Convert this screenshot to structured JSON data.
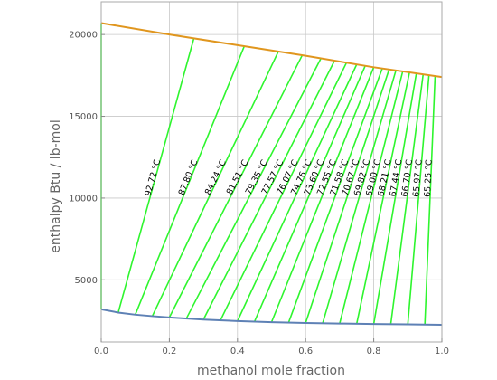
{
  "chart_data": {
    "type": "line",
    "title": "",
    "xlabel": "methanol  mole fraction",
    "ylabel": "enthalpy   Btu / lb-mol",
    "xlim": [
      0,
      1
    ],
    "ylim": [
      1200,
      22000
    ],
    "x_ticks": [
      "0.0",
      "0.2",
      "0.4",
      "0.6",
      "0.8",
      "1.0"
    ],
    "x_tick_values": [
      0,
      0.2,
      0.4,
      0.6,
      0.8,
      1.0
    ],
    "y_ticks": [
      "5000",
      "10000",
      "15000",
      "20000"
    ],
    "y_tick_values": [
      5000,
      10000,
      15000,
      20000
    ],
    "grid": true,
    "colors": {
      "vapor": "#e0961e",
      "liquid": "#5e81b5",
      "tie": "#2ef52e",
      "grid": "#c8c8c8",
      "frame": "#aaaaaa"
    },
    "series": [
      {
        "role": "vapor",
        "x": [
          0.0,
          0.2,
          0.4,
          0.6,
          0.8,
          1.0
        ],
        "y": [
          20700,
          20000,
          19350,
          18700,
          18000,
          17400
        ]
      },
      {
        "role": "liquid",
        "x": [
          0.0,
          0.05,
          0.1,
          0.15,
          0.2,
          0.3,
          0.4,
          0.5,
          0.6,
          0.7,
          0.8,
          0.9,
          1.0
        ],
        "y": [
          3200,
          3000,
          2870,
          2780,
          2700,
          2570,
          2480,
          2410,
          2360,
          2330,
          2300,
          2280,
          2250
        ]
      }
    ],
    "tie_lines": [
      {
        "x_liquid": 0.0,
        "x_vapor": 0.0,
        "label": ""
      },
      {
        "x_liquid": 0.05,
        "x_vapor": 0.272,
        "label": "92.72 °C"
      },
      {
        "x_liquid": 0.1,
        "x_vapor": 0.42,
        "label": "87.80 °C"
      },
      {
        "x_liquid": 0.15,
        "x_vapor": 0.52,
        "label": "84.24 °C"
      },
      {
        "x_liquid": 0.2,
        "x_vapor": 0.59,
        "label": "81.51 °C"
      },
      {
        "x_liquid": 0.25,
        "x_vapor": 0.645,
        "label": "79.35 °C"
      },
      {
        "x_liquid": 0.3,
        "x_vapor": 0.685,
        "label": "77.57 °C"
      },
      {
        "x_liquid": 0.35,
        "x_vapor": 0.72,
        "label": "76.07 °C"
      },
      {
        "x_liquid": 0.4,
        "x_vapor": 0.75,
        "label": "74.76 °C"
      },
      {
        "x_liquid": 0.45,
        "x_vapor": 0.775,
        "label": "73.60 °C"
      },
      {
        "x_liquid": 0.5,
        "x_vapor": 0.8,
        "label": "72.55 °C"
      },
      {
        "x_liquid": 0.55,
        "x_vapor": 0.825,
        "label": "71.58 °C"
      },
      {
        "x_liquid": 0.6,
        "x_vapor": 0.845,
        "label": "70.67 °C"
      },
      {
        "x_liquid": 0.65,
        "x_vapor": 0.865,
        "label": "69.82 °C"
      },
      {
        "x_liquid": 0.7,
        "x_vapor": 0.885,
        "label": "69.00 °C"
      },
      {
        "x_liquid": 0.75,
        "x_vapor": 0.905,
        "label": "68.21 °C"
      },
      {
        "x_liquid": 0.8,
        "x_vapor": 0.925,
        "label": "67.44 °C"
      },
      {
        "x_liquid": 0.85,
        "x_vapor": 0.945,
        "label": "66.70 °C"
      },
      {
        "x_liquid": 0.9,
        "x_vapor": 0.962,
        "label": "65.97 °C"
      },
      {
        "x_liquid": 0.95,
        "x_vapor": 0.98,
        "label": "65.25 °C"
      }
    ]
  }
}
